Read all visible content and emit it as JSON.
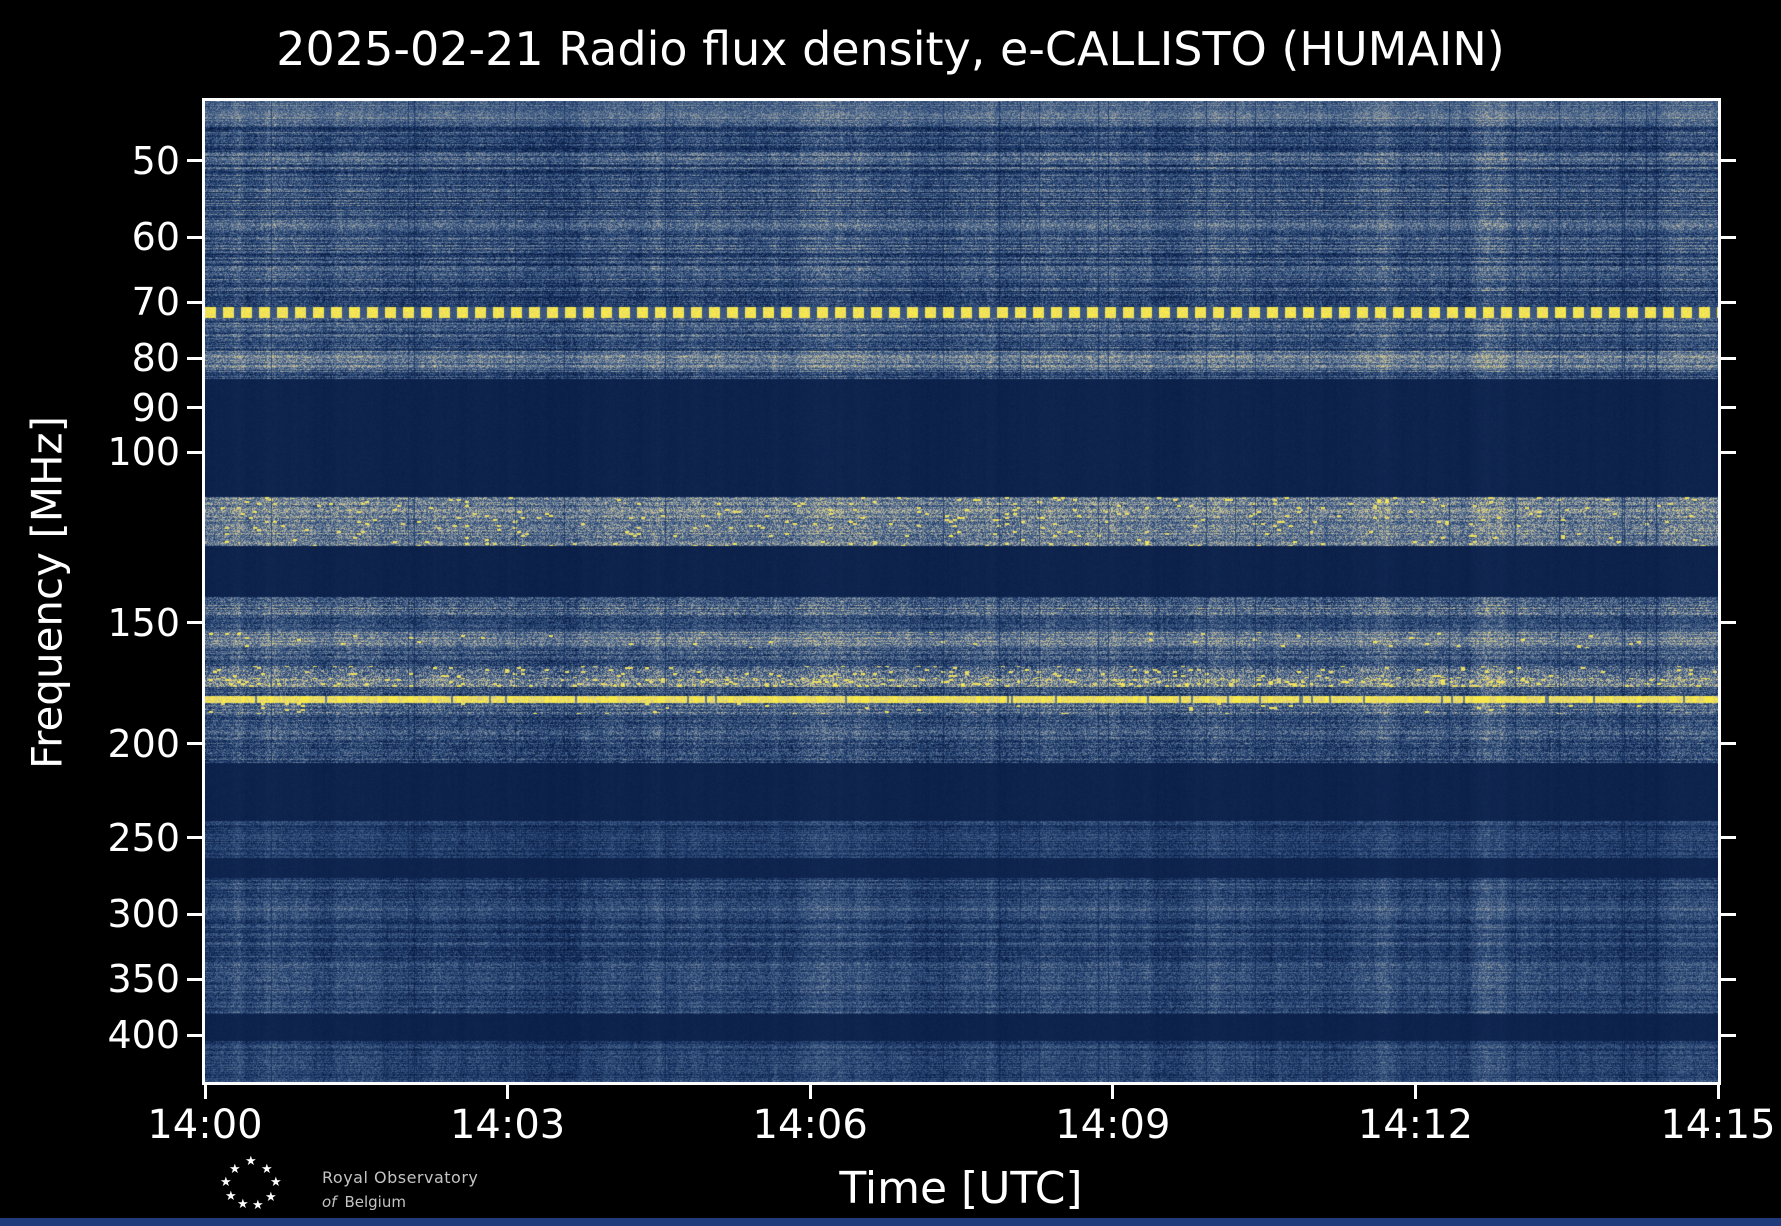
{
  "title": "2025-02-21 Radio flux density, e-CALLISTO (HUMAIN)",
  "axes": {
    "x": {
      "label": "Time [UTC]",
      "ticks": [
        "14:00",
        "14:03",
        "14:06",
        "14:09",
        "14:12",
        "14:15"
      ]
    },
    "y": {
      "label": "Frequency [MHz]",
      "ticks": [
        50,
        60,
        70,
        80,
        90,
        100,
        150,
        200,
        250,
        300,
        350,
        400
      ],
      "scale": "log",
      "inverted": true
    }
  },
  "footer": {
    "line1": "Royal Observatory",
    "line2_italic": "of",
    "line2_rest": "Belgium"
  },
  "icons": {
    "star": "★"
  },
  "colors": {
    "background": "#000000",
    "frame": "#ffffff",
    "text": "#ffffff",
    "footer_text": "#c4c4c4",
    "bottom_strip": "#1f3b7c"
  },
  "chart_data": {
    "type": "heatmap",
    "subtype": "dynamic-radio-spectrogram",
    "title": "2025-02-21 Radio flux density, e-CALLISTO (HUMAIN)",
    "date": "2025-02-21",
    "instrument": "e-CALLISTO",
    "station": "HUMAIN",
    "xlabel": "Time [UTC]",
    "ylabel": "Frequency [MHz]",
    "x_range": [
      "14:00",
      "14:15"
    ],
    "x_ticks": [
      "14:00",
      "14:03",
      "14:06",
      "14:09",
      "14:12",
      "14:15"
    ],
    "y_scale": "log",
    "y_inverted": true,
    "freq_min": 43.4,
    "freq_max": 447,
    "y_ticks": [
      50,
      60,
      70,
      80,
      90,
      100,
      150,
      200,
      250,
      300,
      350,
      400
    ],
    "legend": "none",
    "grid": false,
    "colormap": {
      "stops": [
        [
          0.0,
          "#081c43"
        ],
        [
          0.22,
          "#1f3c6c"
        ],
        [
          0.45,
          "#4f6a8e"
        ],
        [
          0.62,
          "#8e98a0"
        ],
        [
          0.75,
          "#c6bf9a"
        ],
        [
          0.88,
          "#ecdc63"
        ],
        [
          1.0,
          "#fff23c"
        ]
      ]
    },
    "bands": [
      {
        "f0": 43.4,
        "f1": 84,
        "type": "noise",
        "base": 0.3,
        "noise": 0.2,
        "stripe": 0.2,
        "cmod": 0.1,
        "label": "broadband noise 45-84 MHz with horizontal striping"
      },
      {
        "f0": 43.4,
        "f1": 45.6,
        "type": "noise",
        "base": 0.44,
        "noise": 0.16,
        "stripe": 0.1,
        "cmod": 0.08,
        "label": "light band at very top"
      },
      {
        "f0": 70.8,
        "f1": 72.6,
        "type": "dashed",
        "base": 0.9,
        "noise": 0.1,
        "label": "bright pulsed yellow carrier ~71 MHz"
      },
      {
        "f0": 78.5,
        "f1": 82.0,
        "type": "noise",
        "base": 0.48,
        "noise": 0.2,
        "stripe": 0.12,
        "cmod": 0.1,
        "label": "lighter band ~80 MHz"
      },
      {
        "f0": 84,
        "f1": 111,
        "type": "flat",
        "base": 0.05,
        "noise": 0.02,
        "label": "quiet dark FM broadcast band"
      },
      {
        "f0": 111,
        "f1": 125,
        "type": "speckle",
        "base": 0.5,
        "noise": 0.24,
        "stripe": 0.1,
        "cmod": 0.08,
        "speckle": 0.03,
        "label": "aeronautical band with bright voice bursts"
      },
      {
        "f0": 125,
        "f1": 141,
        "type": "flat",
        "base": 0.05,
        "noise": 0.02,
        "label": "quiet dark band"
      },
      {
        "f0": 141,
        "f1": 148,
        "type": "noise",
        "base": 0.42,
        "noise": 0.24,
        "stripe": 0.15,
        "cmod": 0.1,
        "label": "noisy band ~145 MHz"
      },
      {
        "f0": 148,
        "f1": 153,
        "type": "noise",
        "base": 0.28,
        "noise": 0.2,
        "stripe": 0.1,
        "cmod": 0.1
      },
      {
        "f0": 153,
        "f1": 159,
        "type": "speckle",
        "base": 0.5,
        "noise": 0.22,
        "stripe": 0.1,
        "cmod": 0.08,
        "speckle": 0.012,
        "label": "tan band ~156 MHz"
      },
      {
        "f0": 159,
        "f1": 166,
        "type": "noise",
        "base": 0.33,
        "noise": 0.22,
        "stripe": 0.12,
        "cmod": 0.1
      },
      {
        "f0": 166,
        "f1": 171,
        "type": "speckle",
        "base": 0.45,
        "noise": 0.28,
        "stripe": 0.1,
        "cmod": 0.1,
        "speckle": 0.05,
        "label": "bright speckled RFI"
      },
      {
        "f0": 171,
        "f1": 174.5,
        "type": "speckle",
        "base": 0.55,
        "noise": 0.28,
        "stripe": 0.08,
        "cmod": 0.1,
        "speckle": 0.09,
        "label": "bright intermittent RFI ~172 MHz"
      },
      {
        "f0": 174.5,
        "f1": 178.5,
        "type": "noise",
        "base": 0.34,
        "noise": 0.24,
        "stripe": 0.1,
        "cmod": 0.1
      },
      {
        "f0": 178.5,
        "f1": 181.5,
        "type": "line",
        "base": 0.88,
        "noise": 0.12,
        "speckle": 0.15,
        "label": "strong continuous yellow carrier ~180 MHz"
      },
      {
        "f0": 181.5,
        "f1": 186,
        "type": "speckle",
        "base": 0.42,
        "noise": 0.24,
        "stripe": 0.1,
        "cmod": 0.1,
        "speckle": 0.02
      },
      {
        "f0": 186,
        "f1": 209,
        "type": "noise",
        "base": 0.3,
        "noise": 0.22,
        "stripe": 0.12,
        "cmod": 0.1,
        "label": "noisy blue band 186-209 MHz"
      },
      {
        "f0": 209,
        "f1": 240,
        "type": "flat",
        "base": 0.05,
        "noise": 0.02,
        "label": "quiet dark band"
      },
      {
        "f0": 240,
        "f1": 262,
        "type": "noise",
        "base": 0.2,
        "noise": 0.14,
        "stripe": 0.1,
        "cmod": 0.08,
        "label": "faint noise ~250 MHz"
      },
      {
        "f0": 262,
        "f1": 275,
        "type": "flat",
        "base": 0.06,
        "noise": 0.02
      },
      {
        "f0": 275,
        "f1": 380,
        "type": "noise",
        "base": 0.24,
        "noise": 0.16,
        "stripe": 0.12,
        "cmod": 0.11,
        "label": "mottled noise 275-380 MHz"
      },
      {
        "f0": 294,
        "f1": 304,
        "type": "noise",
        "base": 0.3,
        "noise": 0.16,
        "stripe": 0.1,
        "cmod": 0.11,
        "label": "lighter streak ~300 MHz"
      },
      {
        "f0": 336,
        "f1": 352,
        "type": "noise",
        "base": 0.3,
        "noise": 0.17,
        "stripe": 0.1,
        "cmod": 0.11,
        "label": "lighter streak ~345 MHz"
      },
      {
        "f0": 380,
        "f1": 405,
        "type": "flat",
        "base": 0.05,
        "noise": 0.02,
        "label": "quiet dark band"
      },
      {
        "f0": 405,
        "f1": 447.5,
        "type": "noise",
        "base": 0.23,
        "noise": 0.15,
        "stripe": 0.1,
        "cmod": 0.1,
        "label": "bottom noise band"
      }
    ]
  }
}
